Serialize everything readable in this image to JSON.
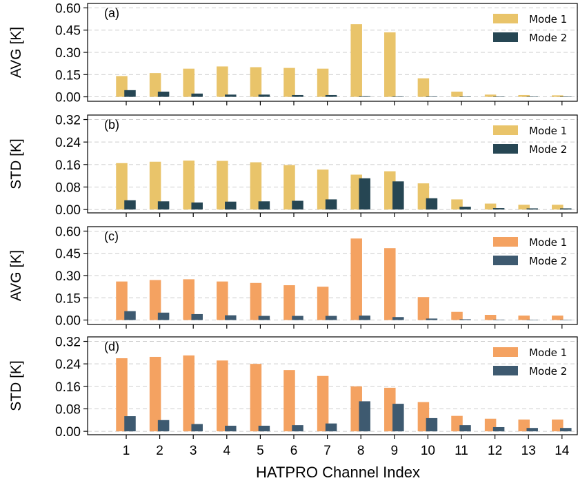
{
  "chart_data": [
    {
      "type": "bar",
      "panel_label": "(a)",
      "ylabel": "AVG [K]",
      "ylim": [
        -0.03,
        0.63
      ],
      "yticks": [
        0.0,
        0.15,
        0.3,
        0.45,
        0.6
      ],
      "ytick_labels": [
        "0.00",
        "0.15",
        "0.30",
        "0.45",
        "0.60"
      ],
      "grid": "horizontal-dashed",
      "legend_position": "top-right",
      "categories": [
        1,
        2,
        3,
        4,
        5,
        6,
        7,
        8,
        9,
        10,
        11,
        12,
        13,
        14
      ],
      "series": [
        {
          "name": "Mode 1",
          "color": "#E9C46A",
          "values": [
            0.14,
            0.16,
            0.19,
            0.205,
            0.2,
            0.195,
            0.19,
            0.49,
            0.435,
            0.125,
            0.035,
            0.015,
            0.012,
            0.01
          ]
        },
        {
          "name": "Mode 2",
          "color": "#264653",
          "values": [
            0.045,
            0.035,
            0.022,
            0.015,
            0.015,
            0.012,
            0.012,
            0.004,
            0.003,
            0.003,
            0.002,
            0.002,
            0.002,
            0.001
          ]
        }
      ]
    },
    {
      "type": "bar",
      "panel_label": "(b)",
      "ylabel": "STD [K]",
      "ylim": [
        -0.012,
        0.336
      ],
      "yticks": [
        0.0,
        0.08,
        0.16,
        0.24,
        0.32
      ],
      "ytick_labels": [
        "0.00",
        "0.08",
        "0.16",
        "0.24",
        "0.32"
      ],
      "grid": "horizontal-dashed",
      "legend_position": "top-right",
      "categories": [
        1,
        2,
        3,
        4,
        5,
        6,
        7,
        8,
        9,
        10,
        11,
        12,
        13,
        14
      ],
      "series": [
        {
          "name": "Mode 1",
          "color": "#E9C46A",
          "values": [
            0.165,
            0.17,
            0.174,
            0.173,
            0.168,
            0.158,
            0.142,
            0.124,
            0.136,
            0.093,
            0.036,
            0.021,
            0.017,
            0.017
          ]
        },
        {
          "name": "Mode 2",
          "color": "#264653",
          "values": [
            0.033,
            0.029,
            0.025,
            0.028,
            0.029,
            0.031,
            0.036,
            0.111,
            0.1,
            0.04,
            0.01,
            0.005,
            0.004,
            0.004
          ]
        }
      ]
    },
    {
      "type": "bar",
      "panel_label": "(c)",
      "ylabel": "AVG [K]",
      "ylim": [
        -0.03,
        0.63
      ],
      "yticks": [
        0.0,
        0.15,
        0.3,
        0.45,
        0.6
      ],
      "ytick_labels": [
        "0.00",
        "0.15",
        "0.30",
        "0.45",
        "0.60"
      ],
      "grid": "horizontal-dashed",
      "legend_position": "top-right",
      "categories": [
        1,
        2,
        3,
        4,
        5,
        6,
        7,
        8,
        9,
        10,
        11,
        12,
        13,
        14
      ],
      "series": [
        {
          "name": "Mode 1",
          "color": "#F4A261",
          "values": [
            0.26,
            0.27,
            0.275,
            0.26,
            0.25,
            0.235,
            0.225,
            0.55,
            0.485,
            0.155,
            0.055,
            0.035,
            0.03,
            0.03
          ]
        },
        {
          "name": "Mode 2",
          "color": "#3E5A70",
          "values": [
            0.06,
            0.05,
            0.04,
            0.032,
            0.028,
            0.028,
            0.028,
            0.03,
            0.02,
            0.01,
            0.005,
            0.003,
            0.002,
            0.002
          ]
        }
      ]
    },
    {
      "type": "bar",
      "panel_label": "(d)",
      "ylabel": "STD [K]",
      "ylim": [
        -0.012,
        0.336
      ],
      "yticks": [
        0.0,
        0.08,
        0.16,
        0.24,
        0.32
      ],
      "ytick_labels": [
        "0.00",
        "0.08",
        "0.16",
        "0.24",
        "0.32"
      ],
      "grid": "horizontal-dashed",
      "legend_position": "top-right",
      "xlabel": "HATPRO Channel Index",
      "categories": [
        1,
        2,
        3,
        4,
        5,
        6,
        7,
        8,
        9,
        10,
        11,
        12,
        13,
        14
      ],
      "series": [
        {
          "name": "Mode 1",
          "color": "#F4A261",
          "values": [
            0.26,
            0.265,
            0.27,
            0.252,
            0.24,
            0.218,
            0.197,
            0.16,
            0.155,
            0.104,
            0.055,
            0.045,
            0.042,
            0.042
          ]
        },
        {
          "name": "Mode 2",
          "color": "#3E5A70",
          "values": [
            0.054,
            0.04,
            0.026,
            0.02,
            0.02,
            0.022,
            0.028,
            0.107,
            0.098,
            0.047,
            0.022,
            0.015,
            0.012,
            0.012
          ]
        }
      ]
    }
  ]
}
